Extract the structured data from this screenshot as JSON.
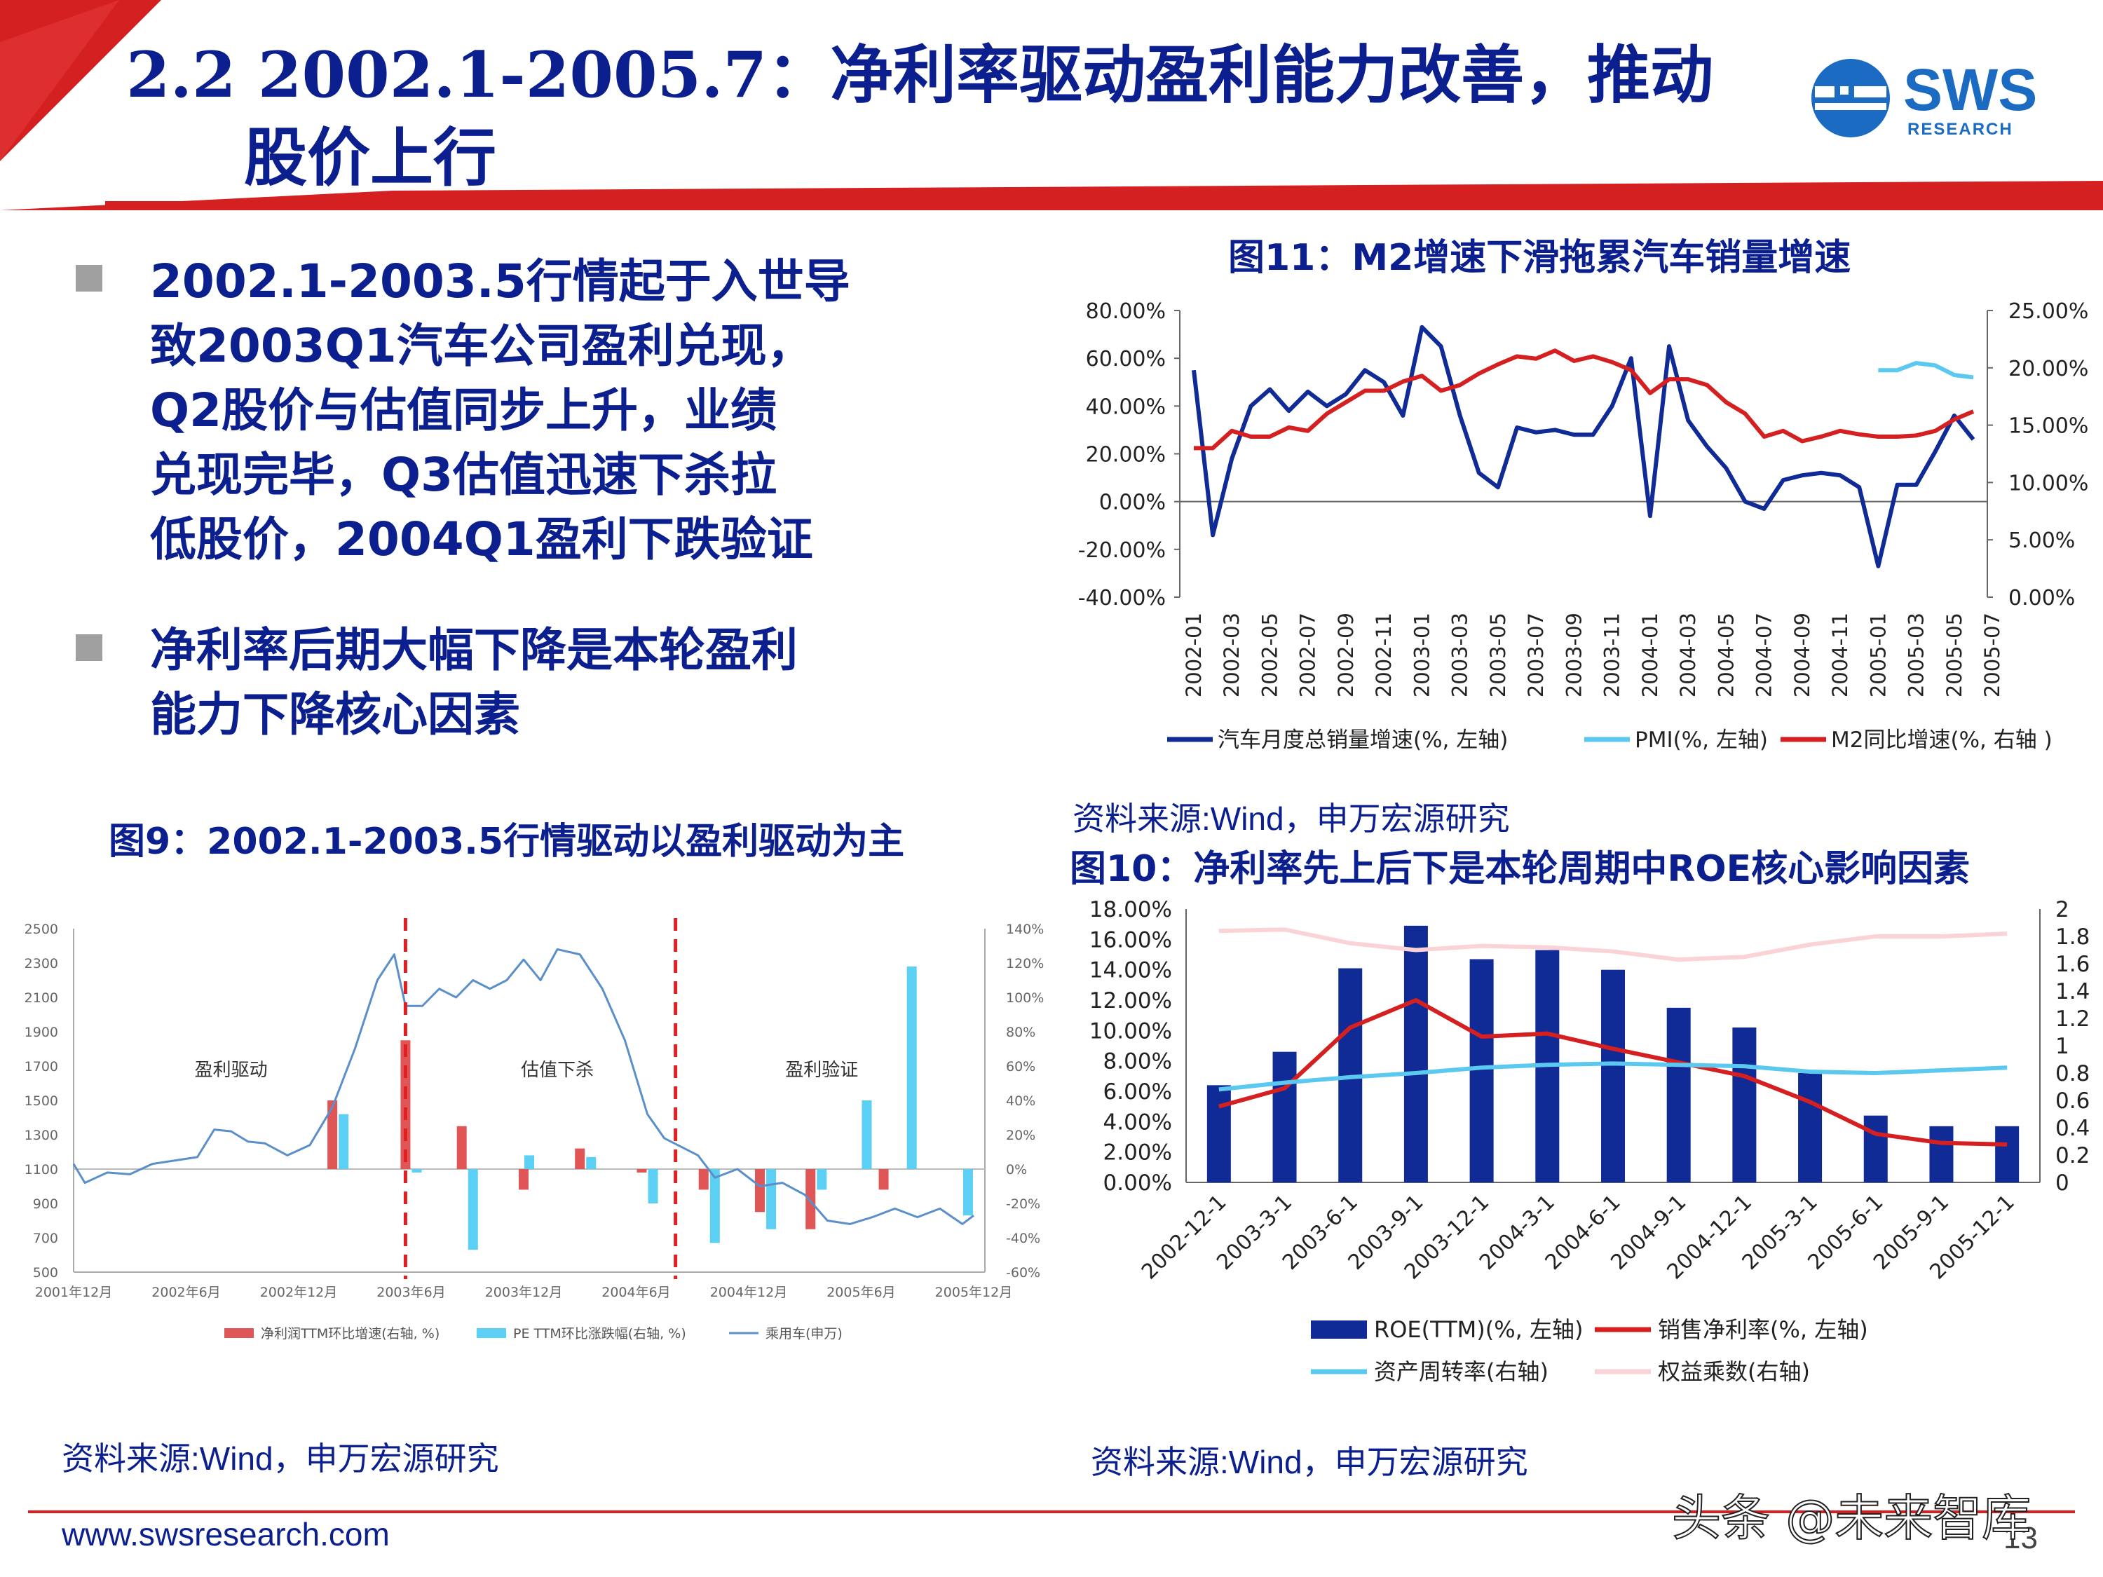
{
  "slide": {
    "title_line1": "2.2 2002.1-2005.7：净利率驱动盈利能力改善，推动",
    "title_line2": "股价上行",
    "logo_text": "SWS",
    "logo_sub": "RESEARCH",
    "bullets": [
      [
        "2002.1-2003.5行情起于入世导",
        "致2003Q1汽车公司盈利兑现，",
        "Q2股价与估值同步上升，业绩",
        "兑现完毕，Q3估值迅速下杀拉",
        "低股价，2004Q1盈利下跌验证"
      ],
      [
        "净利率后期大幅下降是本轮盈利",
        "能力下降核心因素"
      ]
    ],
    "footer_url": "www.swsresearch.com",
    "page_number": "13",
    "watermark": "头条 @未来智库",
    "colors": {
      "title": "#0b1f8f",
      "red": "#d42020",
      "navy": "#102a96",
      "sky": "#5bc8f0",
      "pink": "#f9d3d6",
      "grid": "#888888"
    }
  },
  "fig11": {
    "title": "图11：M2增速下滑拖累汽车销量增速",
    "source": "资料来源:Wind，申万宏源研究",
    "chart_data": {
      "type": "line",
      "left_ticks": [
        "80.00%",
        "60.00%",
        "40.00%",
        "20.00%",
        "0.00%",
        "-20.00%",
        "-40.00%"
      ],
      "right_ticks": [
        "25.00%",
        "20.00%",
        "15.00%",
        "10.00%",
        "5.00%",
        "0.00%"
      ],
      "ylim_left": [
        -40,
        80
      ],
      "ylim_right": [
        0,
        25
      ],
      "x_ticks": [
        "2002-01",
        "2002-03",
        "2002-05",
        "2002-07",
        "2002-09",
        "2002-11",
        "2003-01",
        "2003-03",
        "2003-05",
        "2003-07",
        "2003-09",
        "2003-11",
        "2004-01",
        "2004-03",
        "2004-05",
        "2004-07",
        "2004-09",
        "2004-11",
        "2005-01",
        "2005-03",
        "2005-05",
        "2005-07"
      ],
      "series": [
        {
          "name": "汽车月度总销量增速(%, 左轴)",
          "axis": "left",
          "color": "#102a96",
          "start": 0,
          "values": [
            55,
            -14,
            18,
            40,
            47,
            38,
            46,
            40,
            45,
            55,
            50,
            36,
            73,
            65,
            36,
            12,
            6,
            31,
            29,
            30,
            28,
            28,
            40,
            60,
            -6,
            65,
            34,
            23,
            14,
            0,
            -3,
            9,
            11,
            12,
            11,
            6,
            -27,
            7,
            7,
            21,
            36,
            26
          ]
        },
        {
          "name": "PMI(%, 左轴)",
          "axis": "left",
          "color": "#5bc8f0",
          "start": 36,
          "values": [
            55,
            55,
            58,
            57,
            53,
            52
          ]
        },
        {
          "name": "M2同比增速(%, 右轴 )",
          "axis": "right",
          "color": "#d42020",
          "start": 0,
          "values": [
            13,
            13,
            14.5,
            14,
            14,
            14.8,
            14.5,
            16,
            17,
            18,
            18,
            18.8,
            19.3,
            18,
            18.5,
            19.5,
            20.3,
            21,
            20.8,
            21.5,
            20.6,
            21,
            20.5,
            19.8,
            17.8,
            19,
            19,
            18.5,
            17,
            16,
            14,
            14.5,
            13.6,
            14,
            14.5,
            14.2,
            14,
            14,
            14.1,
            14.5,
            15.5,
            16.2
          ]
        }
      ]
    }
  },
  "fig9": {
    "title": "图9：2002.1-2003.5行情驱动以盈利驱动为主",
    "source": "资料来源:Wind，申万宏源研究",
    "annotations": [
      "盈利驱动",
      "估值下杀",
      "盈利验证"
    ],
    "chart_data": {
      "type": "bar",
      "left_ticks": [
        "2500",
        "2300",
        "2100",
        "1900",
        "1700",
        "1500",
        "1300",
        "1100",
        "900",
        "700",
        "500"
      ],
      "right_ticks": [
        "140%",
        "120%",
        "100%",
        "80%",
        "60%",
        "40%",
        "20%",
        "0%",
        "-20%",
        "-40%",
        "-60%"
      ],
      "ylim_left": [
        500,
        2500
      ],
      "ylim_right": [
        -60,
        140
      ],
      "x_ticks": [
        "2001年12月",
        "2002年6月",
        "2002年12月",
        "2003年6月",
        "2003年12月",
        "2004年6月",
        "2004年12月",
        "2005年6月",
        "2005年12月"
      ],
      "legend": [
        "净利润TTM环比增速(右轴, %)",
        "PE TTM环比涨跌幅(右轴, %)",
        "乘用车(申万)"
      ],
      "red_bars": [
        [
          2.3,
          40
        ],
        [
          2.95,
          75
        ],
        [
          3.45,
          25
        ],
        [
          4.0,
          -12
        ],
        [
          4.5,
          12
        ],
        [
          5.05,
          -2
        ],
        [
          5.6,
          -12
        ],
        [
          6.1,
          -25
        ],
        [
          6.55,
          -35
        ],
        [
          7.2,
          -12
        ]
      ],
      "blue_bars": [
        [
          2.4,
          32
        ],
        [
          3.05,
          -2
        ],
        [
          3.55,
          -47
        ],
        [
          4.05,
          8
        ],
        [
          4.6,
          7
        ],
        [
          5.15,
          -20
        ],
        [
          5.7,
          -43
        ],
        [
          6.2,
          -35
        ],
        [
          6.65,
          -12
        ],
        [
          7.05,
          40
        ],
        [
          7.45,
          118
        ],
        [
          7.95,
          -27
        ]
      ],
      "line_points": [
        [
          0,
          1130
        ],
        [
          0.1,
          1020
        ],
        [
          0.3,
          1080
        ],
        [
          0.5,
          1070
        ],
        [
          0.7,
          1130
        ],
        [
          0.9,
          1150
        ],
        [
          1.1,
          1170
        ],
        [
          1.25,
          1330
        ],
        [
          1.4,
          1320
        ],
        [
          1.55,
          1260
        ],
        [
          1.7,
          1250
        ],
        [
          1.9,
          1180
        ],
        [
          2.1,
          1240
        ],
        [
          2.3,
          1460
        ],
        [
          2.5,
          1800
        ],
        [
          2.7,
          2200
        ],
        [
          2.85,
          2350
        ],
        [
          2.95,
          2050
        ],
        [
          3.1,
          2050
        ],
        [
          3.25,
          2150
        ],
        [
          3.4,
          2100
        ],
        [
          3.55,
          2200
        ],
        [
          3.7,
          2150
        ],
        [
          3.85,
          2200
        ],
        [
          4.0,
          2320
        ],
        [
          4.15,
          2200
        ],
        [
          4.3,
          2380
        ],
        [
          4.5,
          2350
        ],
        [
          4.7,
          2150
        ],
        [
          4.9,
          1850
        ],
        [
          5.1,
          1420
        ],
        [
          5.25,
          1280
        ],
        [
          5.4,
          1230
        ],
        [
          5.55,
          1180
        ],
        [
          5.7,
          1050
        ],
        [
          5.9,
          1100
        ],
        [
          6.1,
          1000
        ],
        [
          6.3,
          1020
        ],
        [
          6.5,
          950
        ],
        [
          6.7,
          800
        ],
        [
          6.9,
          780
        ],
        [
          7.1,
          820
        ],
        [
          7.3,
          870
        ],
        [
          7.5,
          820
        ],
        [
          7.7,
          870
        ],
        [
          7.9,
          780
        ],
        [
          8.0,
          830
        ]
      ]
    }
  },
  "fig10": {
    "title": "图10：净利率先上后下是本轮周期中ROE核心影响因素",
    "source": "资料来源:Wind，申万宏源研究",
    "chart_data": {
      "type": "bar",
      "left_ticks": [
        "18.00%",
        "16.00%",
        "14.00%",
        "12.00%",
        "10.00%",
        "8.00%",
        "6.00%",
        "4.00%",
        "2.00%",
        "0.00%"
      ],
      "right_ticks": [
        "2",
        "1.8",
        "1.6",
        "1.4",
        "1.2",
        "1",
        "0.8",
        "0.6",
        "0.4",
        "0.2",
        "0"
      ],
      "ylim_left": [
        0,
        18
      ],
      "ylim_right": [
        0,
        2
      ],
      "categories": [
        "2002-12-1",
        "2003-3-1",
        "2003-6-1",
        "2003-9-1",
        "2003-12-1",
        "2004-3-1",
        "2004-6-1",
        "2004-9-1",
        "2004-12-1",
        "2005-3-1",
        "2005-6-1",
        "2005-9-1",
        "2005-12-1"
      ],
      "series": [
        {
          "name": "ROE(TTM)(%, 左轴)",
          "type": "bar",
          "axis": "left",
          "color": "#102a96",
          "values": [
            6.4,
            8.6,
            14.1,
            16.9,
            14.7,
            15.3,
            14.0,
            11.5,
            10.2,
            7.2,
            4.4,
            3.7,
            3.7
          ]
        },
        {
          "name": "销售净利率(%, 左轴)",
          "type": "line",
          "axis": "left",
          "color": "#d42020",
          "values": [
            5.0,
            6.2,
            10.2,
            12.0,
            9.6,
            9.8,
            8.8,
            7.9,
            7.0,
            5.3,
            3.2,
            2.6,
            2.5
          ]
        },
        {
          "name": "资产周转率(右轴)",
          "type": "line",
          "axis": "right",
          "color": "#5bc8f0",
          "values": [
            0.68,
            0.73,
            0.77,
            0.8,
            0.84,
            0.86,
            0.87,
            0.86,
            0.85,
            0.81,
            0.8,
            0.82,
            0.84
          ]
        },
        {
          "name": "权益乘数(右轴)",
          "type": "line",
          "axis": "right",
          "color": "#f9d3d6",
          "values": [
            1.84,
            1.85,
            1.75,
            1.7,
            1.73,
            1.72,
            1.69,
            1.63,
            1.65,
            1.74,
            1.8,
            1.8,
            1.82
          ]
        }
      ]
    }
  }
}
